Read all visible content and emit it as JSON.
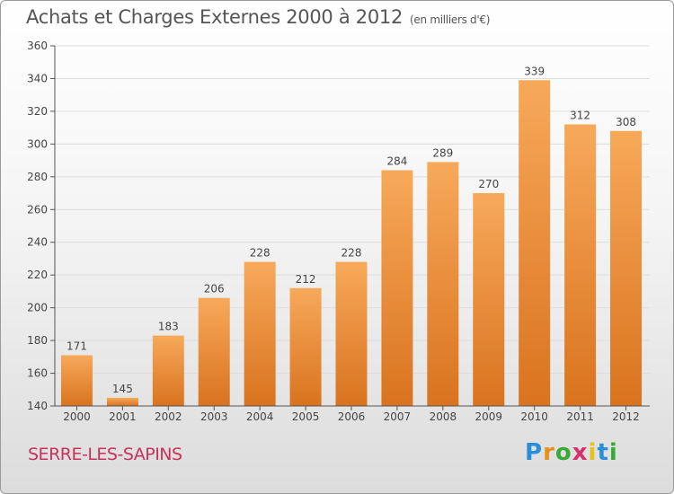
{
  "header": {
    "title": "Achats et Charges Externes 2000 à 2012",
    "unit": "(en milliers d'€)"
  },
  "footer": {
    "commune": "SERRE-LES-SAPINS",
    "logo": {
      "text": "Proxiti",
      "letter_colors": [
        "#2a8fd8",
        "#e8901c",
        "#3aaa35",
        "#d62f6e",
        "#e8c21c",
        "#2a8fd8",
        "#3aaa35"
      ]
    }
  },
  "chart_data": {
    "type": "bar",
    "title": "Achats et Charges Externes 2000 à 2012",
    "xlabel": "",
    "ylabel": "",
    "categories": [
      "2000",
      "2001",
      "2002",
      "2003",
      "2004",
      "2005",
      "2006",
      "2007",
      "2008",
      "2009",
      "2010",
      "2011",
      "2012"
    ],
    "values": [
      171,
      145,
      183,
      206,
      228,
      212,
      228,
      284,
      289,
      270,
      339,
      312,
      308
    ],
    "ylim": [
      140,
      360
    ],
    "yticks": [
      140,
      160,
      180,
      200,
      220,
      240,
      260,
      280,
      300,
      320,
      340,
      360
    ],
    "grid": true,
    "legend": "none",
    "colors": {
      "bar_light": "#f7a95a",
      "bar_dark": "#d9731f",
      "grid": "#dddddd",
      "axis": "#555555",
      "text": "#444444"
    }
  }
}
